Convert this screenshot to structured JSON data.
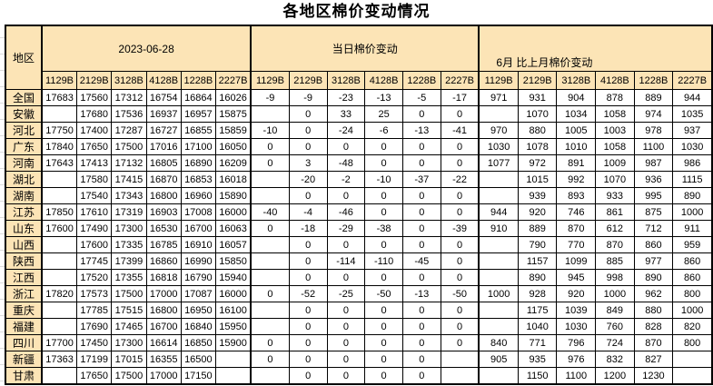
{
  "title": "各地区棉价变动情况",
  "colors": {
    "header_bg": "#FCE4B6",
    "negative_value": "#0070C0",
    "nonnegative_value": "#FF0000",
    "price_value": "#000000",
    "border": "#000000"
  },
  "table": {
    "region_header": "地区",
    "groups": [
      {
        "key": "prices",
        "label": "2023-06-28"
      },
      {
        "key": "daily_change",
        "label": "当日棉价变动"
      },
      {
        "key": "monthly_change",
        "label": "6月 比上月棉价变动"
      }
    ],
    "subheaders": [
      "1129B",
      "2129B",
      "3128B",
      "4128B",
      "1228B",
      "2227B"
    ],
    "rows": [
      {
        "region": "全国",
        "prices": [
          "17683",
          "17560",
          "17312",
          "16754",
          "16864",
          "16026"
        ],
        "daily_change": [
          "-9",
          "-9",
          "-23",
          "-13",
          "-5",
          "-17"
        ],
        "monthly_change": [
          "971",
          "931",
          "904",
          "878",
          "889",
          "944"
        ]
      },
      {
        "region": "安徽",
        "prices": [
          "",
          "17680",
          "17536",
          "16937",
          "16957",
          "15875"
        ],
        "daily_change": [
          "",
          "0",
          "33",
          "25",
          "0",
          "0"
        ],
        "monthly_change": [
          "",
          "1070",
          "1034",
          "1058",
          "974",
          "1035"
        ]
      },
      {
        "region": "河北",
        "prices": [
          "17750",
          "17400",
          "17287",
          "16727",
          "16855",
          "15859"
        ],
        "daily_change": [
          "-10",
          "0",
          "-24",
          "-6",
          "-13",
          "-41"
        ],
        "monthly_change": [
          "970",
          "880",
          "1005",
          "1003",
          "978",
          "937"
        ]
      },
      {
        "region": "广东",
        "prices": [
          "17840",
          "17650",
          "17500",
          "17016",
          "17100",
          "16050"
        ],
        "daily_change": [
          "0",
          "0",
          "0",
          "0",
          "0",
          "0"
        ],
        "monthly_change": [
          "1030",
          "1078",
          "1010",
          "1058",
          "1100",
          "1030"
        ]
      },
      {
        "region": "河南",
        "prices": [
          "17643",
          "17413",
          "17132",
          "16805",
          "16890",
          "16209"
        ],
        "daily_change": [
          "0",
          "3",
          "-48",
          "0",
          "0",
          "0"
        ],
        "monthly_change": [
          "1077",
          "972",
          "891",
          "1009",
          "987",
          "986"
        ]
      },
      {
        "region": "湖北",
        "prices": [
          "",
          "17580",
          "17415",
          "16870",
          "16853",
          "16018"
        ],
        "daily_change": [
          "",
          "-20",
          "-2",
          "-10",
          "-37",
          "-22"
        ],
        "monthly_change": [
          "",
          "1015",
          "992",
          "1070",
          "936",
          "1115"
        ]
      },
      {
        "region": "湖南",
        "prices": [
          "",
          "17540",
          "17343",
          "16800",
          "16960",
          "15890"
        ],
        "daily_change": [
          "",
          "0",
          "0",
          "0",
          "0",
          "0"
        ],
        "monthly_change": [
          "",
          "939",
          "893",
          "933",
          "995",
          "890"
        ]
      },
      {
        "region": "江苏",
        "prices": [
          "17850",
          "17610",
          "17319",
          "16903",
          "17008",
          "16000"
        ],
        "daily_change": [
          "-40",
          "-4",
          "-46",
          "0",
          "0",
          "0"
        ],
        "monthly_change": [
          "944",
          "920",
          "746",
          "861",
          "875",
          "1000"
        ]
      },
      {
        "region": "山东",
        "prices": [
          "17600",
          "17490",
          "17300",
          "16530",
          "16700",
          "16063"
        ],
        "daily_change": [
          "0",
          "-18",
          "-29",
          "-38",
          "0",
          "-39"
        ],
        "monthly_change": [
          "910",
          "889",
          "870",
          "612",
          "712",
          "911"
        ]
      },
      {
        "region": "山西",
        "prices": [
          "",
          "17600",
          "17335",
          "16785",
          "16910",
          "16057"
        ],
        "daily_change": [
          "",
          "0",
          "0",
          "0",
          "0",
          "0"
        ],
        "monthly_change": [
          "",
          "790",
          "770",
          "870",
          "860",
          "959"
        ]
      },
      {
        "region": "陕西",
        "prices": [
          "",
          "17745",
          "17399",
          "16860",
          "16990",
          "15850"
        ],
        "daily_change": [
          "",
          "0",
          "-114",
          "-110",
          "-45",
          "0"
        ],
        "monthly_change": [
          "",
          "1157",
          "1099",
          "885",
          "977",
          "860"
        ]
      },
      {
        "region": "江西",
        "prices": [
          "",
          "17520",
          "17355",
          "16818",
          "16790",
          "15940"
        ],
        "daily_change": [
          "",
          "0",
          "0",
          "0",
          "0",
          "0"
        ],
        "monthly_change": [
          "",
          "890",
          "945",
          "998",
          "890",
          "860"
        ]
      },
      {
        "region": "浙江",
        "prices": [
          "17820",
          "17573",
          "17500",
          "17000",
          "17087",
          "16000"
        ],
        "daily_change": [
          "0",
          "-52",
          "-25",
          "-50",
          "-13",
          "-50"
        ],
        "monthly_change": [
          "1000",
          "928",
          "920",
          "1000",
          "962",
          "800"
        ]
      },
      {
        "region": "重庆",
        "prices": [
          "",
          "17785",
          "17515",
          "16800",
          "16950",
          "16100"
        ],
        "daily_change": [
          "",
          "0",
          "0",
          "0",
          "0",
          "0"
        ],
        "monthly_change": [
          "",
          "1175",
          "1039",
          "849",
          "880",
          "1000"
        ]
      },
      {
        "region": "福建",
        "prices": [
          "",
          "17690",
          "17465",
          "16700",
          "16840",
          "15950"
        ],
        "daily_change": [
          "",
          "0",
          "0",
          "0",
          "0",
          "0"
        ],
        "monthly_change": [
          "",
          "1040",
          "1030",
          "760",
          "828",
          "820"
        ]
      },
      {
        "region": "四川",
        "prices": [
          "17700",
          "17450",
          "17300",
          "16614",
          "16850",
          "15900"
        ],
        "daily_change": [
          "0",
          "0",
          "0",
          "0",
          "0",
          "0"
        ],
        "monthly_change": [
          "840",
          "771",
          "796",
          "724",
          "870",
          "800"
        ]
      },
      {
        "region": "新疆",
        "prices": [
          "17363",
          "17199",
          "17015",
          "16355",
          "16500",
          ""
        ],
        "daily_change": [
          "0",
          "0",
          "0",
          "0",
          "0",
          ""
        ],
        "monthly_change": [
          "905",
          "935",
          "976",
          "832",
          "827",
          ""
        ]
      },
      {
        "region": "甘肃",
        "prices": [
          "",
          "17650",
          "17500",
          "17000",
          "17150",
          ""
        ],
        "daily_change": [
          "",
          "0",
          "0",
          "0",
          "0",
          ""
        ],
        "monthly_change": [
          "",
          "1150",
          "1100",
          "1200",
          "1230",
          ""
        ]
      }
    ]
  }
}
